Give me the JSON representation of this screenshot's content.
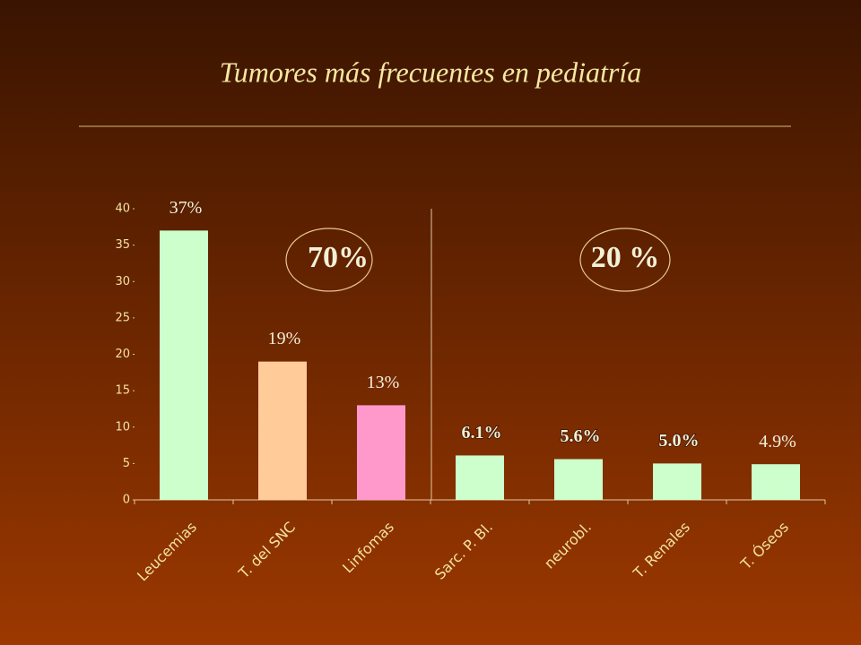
{
  "chart_data": {
    "type": "bar",
    "title": "Tumores más frecuentes en pediatría",
    "categories": [
      "Leucemias",
      "T. del SNC",
      "Linfomas",
      "Sarc. P. Bl.",
      "neurobl.",
      "T. Renales",
      "T. Óseos"
    ],
    "values": [
      37,
      19,
      13,
      6.1,
      5.6,
      5.0,
      4.9
    ],
    "value_labels": [
      "37%",
      "19%",
      "13%",
      "6.1%",
      "5.6%",
      "5.0%",
      "4.9%"
    ],
    "colors": [
      "#ccffcc",
      "#ffcc99",
      "#ff99cc",
      "#ccffcc",
      "#ccffcc",
      "#ccffcc",
      "#ccffcc"
    ],
    "ylim": [
      0,
      40
    ],
    "yticks": [
      0,
      5,
      10,
      15,
      20,
      25,
      30,
      35,
      40
    ],
    "annotations": [
      "70%",
      "20 %"
    ]
  }
}
